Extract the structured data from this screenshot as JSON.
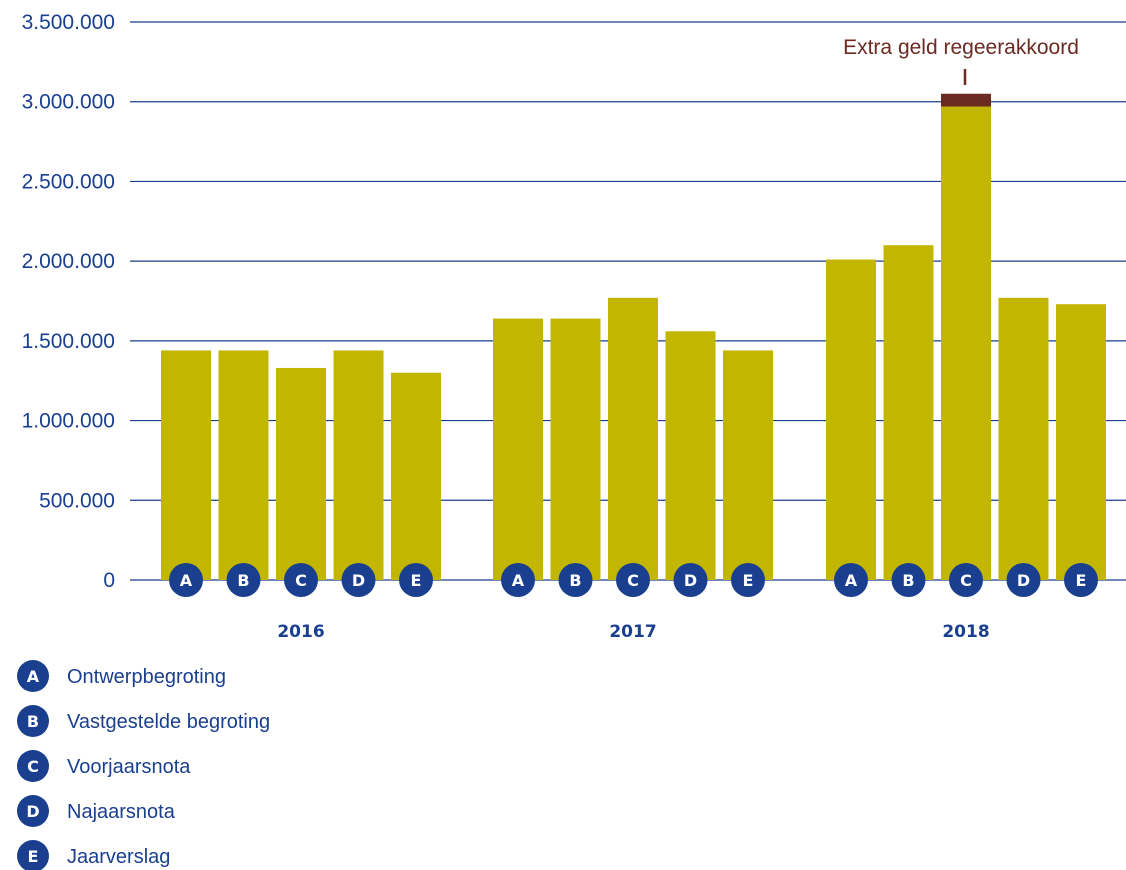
{
  "chart_data": {
    "type": "bar",
    "ylim": [
      0,
      3500000
    ],
    "y_ticks": [
      "0",
      "500.000",
      "1.000.000",
      "1.500.000",
      "2.000.000",
      "2.500.000",
      "3.000.000",
      "3.500.000"
    ],
    "grid": true,
    "groups": [
      {
        "year": "2016",
        "values": [
          1440000,
          1440000,
          1330000,
          1440000,
          1300000
        ]
      },
      {
        "year": "2017",
        "values": [
          1640000,
          1640000,
          1770000,
          1560000,
          1440000
        ]
      },
      {
        "year": "2018",
        "values": [
          2010000,
          2100000,
          2970000,
          1770000,
          1730000
        ]
      }
    ],
    "stages": [
      {
        "letter": "A",
        "label": "Ontwerpbegroting"
      },
      {
        "letter": "B",
        "label": "Vastgestelde begroting"
      },
      {
        "letter": "C",
        "label": "Voorjaarsnota"
      },
      {
        "letter": "D",
        "label": "Najaarsnota"
      },
      {
        "letter": "E",
        "label": "Jaarverslag"
      }
    ],
    "extra": {
      "label": "Extra geld regeerakkoord",
      "year": "2018",
      "stage": "C",
      "value": 80000
    },
    "legend_position": "bottom-left"
  },
  "colors": {
    "bar": "#c2b600",
    "extra": "#6b2a22",
    "axis": "#1a3f8f",
    "badge": "#1a3f8f",
    "badge_text": "#ffffff"
  }
}
